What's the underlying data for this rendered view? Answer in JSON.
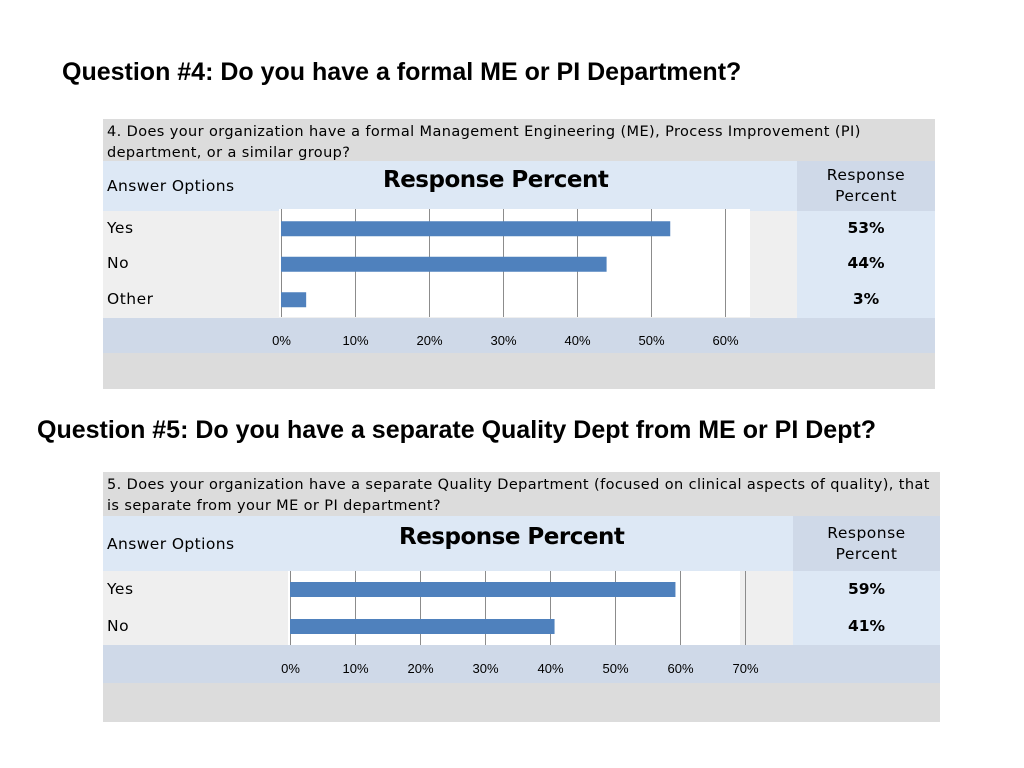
{
  "q4": {
    "heading": "Question #4: Do you have a formal ME or PI Department?",
    "question": "4. Does your organization have a formal Management Engineering (ME), Process Improvement (PI) department, or a similar group?",
    "answer_options_label": "Answer Options",
    "chart_title": "Response Percent",
    "response_percent_header": "Response Percent"
  },
  "q5": {
    "heading": "Question #5: Do you have a separate Quality Dept from ME or PI Dept?",
    "question": "5. Does your organization have a separate Quality Department (focused on clinical aspects of quality), that is separate from your ME or PI department?",
    "answer_options_label": "Answer Options",
    "chart_title": "Response Percent",
    "response_percent_header": "Response Percent"
  },
  "colors": {
    "bar": "#4f81bd",
    "header_bg": "#dde8f5",
    "panel_bg": "#dcdcdc"
  },
  "chart_data": [
    {
      "type": "bar",
      "orientation": "horizontal",
      "title": "Response Percent",
      "categories": [
        "Yes",
        "No",
        "Other"
      ],
      "values": [
        52.6,
        44.0,
        3.4
      ],
      "value_labels": [
        "53%",
        "44%",
        "3%"
      ],
      "xlim": [
        0,
        60
      ],
      "xticks": [
        "0%",
        "10%",
        "20%",
        "30%",
        "40%",
        "50%",
        "60%"
      ],
      "grid": true
    },
    {
      "type": "bar",
      "orientation": "horizontal",
      "title": "Response Percent",
      "categories": [
        "Yes",
        "No"
      ],
      "values": [
        59.3,
        40.7
      ],
      "value_labels": [
        "59%",
        "41%"
      ],
      "xlim": [
        0,
        70
      ],
      "xticks": [
        "0%",
        "10%",
        "20%",
        "30%",
        "40%",
        "50%",
        "60%",
        "70%"
      ],
      "grid": true
    }
  ]
}
